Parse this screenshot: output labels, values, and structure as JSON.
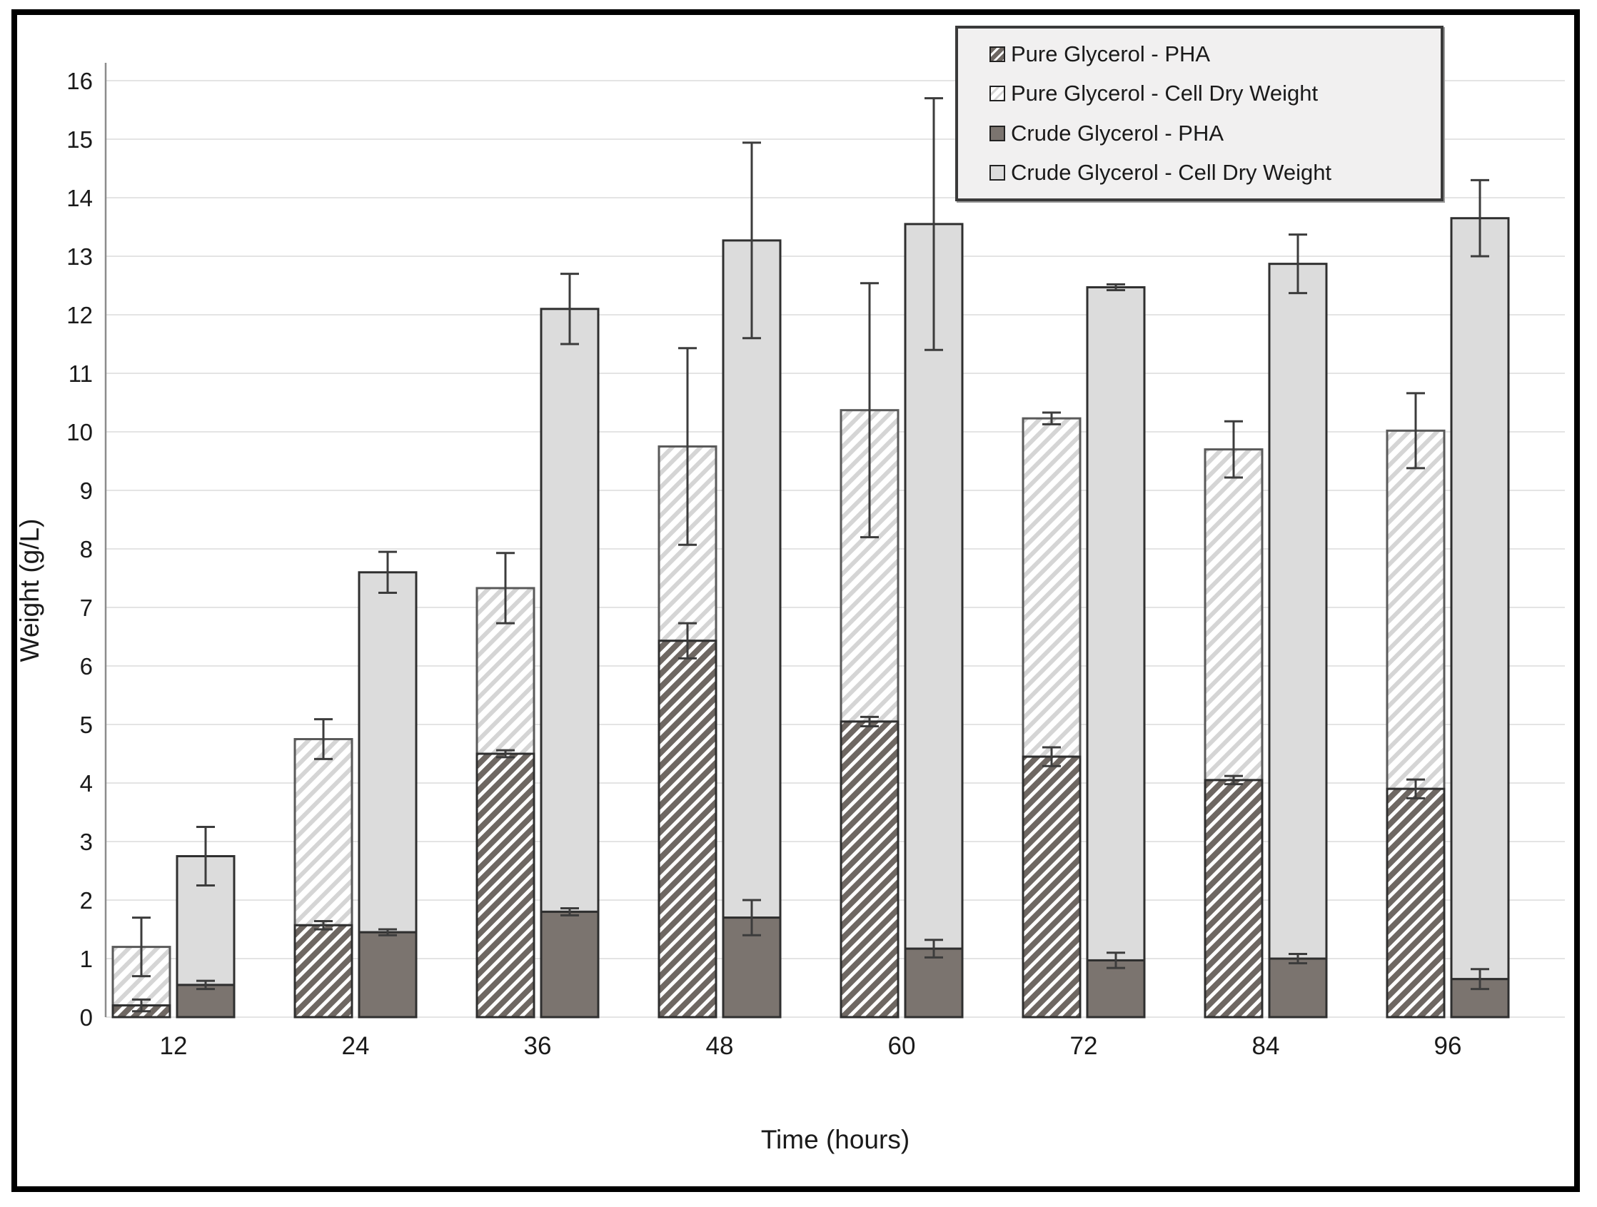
{
  "chart_data": {
    "type": "bar",
    "stacked": true,
    "title": "",
    "xlabel": "Time (hours)",
    "ylabel": "Weight (g/L)",
    "categories": [
      "12",
      "24",
      "36",
      "48",
      "60",
      "72",
      "84",
      "96"
    ],
    "ylim": [
      0,
      16.45
    ],
    "ytick_step": 1,
    "ytick_max": 16,
    "grid": true,
    "legend_position": "top-right",
    "series": [
      {
        "name": "Pure Glycerol - PHA",
        "group": "pure",
        "role": "pha-segment",
        "fill": "hatch-dark",
        "values": [
          0.2,
          1.57,
          4.5,
          6.43,
          5.05,
          4.45,
          4.05,
          3.9
        ],
        "errors": [
          0.1,
          0.07,
          0.06,
          0.3,
          0.08,
          0.16,
          0.07,
          0.16
        ]
      },
      {
        "name": "Pure Glycerol - Cell Dry Weight",
        "group": "pure",
        "role": "stack-total",
        "fill": "hatch-light",
        "totals": [
          1.2,
          4.75,
          7.33,
          9.75,
          10.37,
          10.23,
          9.7,
          10.02
        ],
        "errors": [
          0.5,
          0.34,
          0.6,
          1.68,
          2.17,
          0.1,
          0.48,
          0.64
        ]
      },
      {
        "name": "Crude Glycerol - PHA",
        "group": "crude",
        "role": "pha-segment",
        "fill": "solid-dark",
        "values": [
          0.55,
          1.45,
          1.8,
          1.7,
          1.17,
          0.97,
          1.0,
          0.65
        ],
        "errors": [
          0.07,
          0.05,
          0.06,
          0.3,
          0.15,
          0.13,
          0.08,
          0.17
        ]
      },
      {
        "name": "Crude Glycerol - Cell Dry Weight",
        "group": "crude",
        "role": "stack-total",
        "fill": "solid-light",
        "totals": [
          2.75,
          7.6,
          12.1,
          13.27,
          13.55,
          12.47,
          12.87,
          13.65
        ],
        "errors": [
          0.5,
          0.35,
          0.6,
          1.67,
          2.15,
          0.05,
          0.5,
          0.65
        ]
      }
    ],
    "colors": {
      "hatch_dark_base": "#6e6762",
      "hatch_dark_stripe": "#ffffff",
      "hatch_light_base": "#ffffff",
      "hatch_light_stripe": "#d5d5d5",
      "solid_dark": "#7b746f",
      "solid_light": "#dcdcdc",
      "bar_border_dark": "#2f2f2f",
      "bar_border_light": "#5a5a5a",
      "gridline": "#e4e4e4",
      "axis_line": "#8c8c8c",
      "error_bar": "#3c3c3c",
      "text": "#1a1a1a",
      "legend_bg": "#f1f0f0",
      "legend_border": "#3a3a3a",
      "figure_border": "#000000"
    }
  }
}
